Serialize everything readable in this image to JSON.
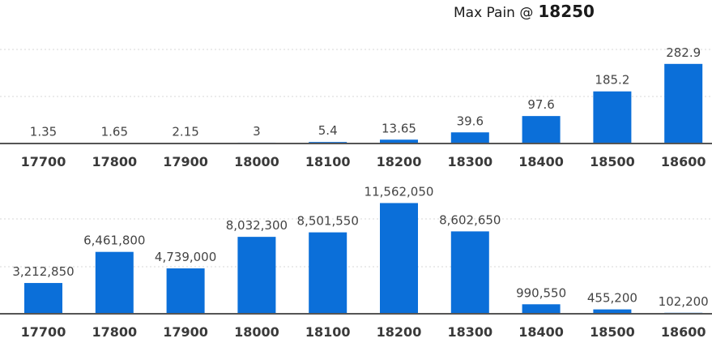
{
  "header": {
    "label": "Max Pain @",
    "value": "18250"
  },
  "chart_data": [
    {
      "type": "bar",
      "title": "",
      "categories": [
        "17700",
        "17800",
        "17900",
        "18000",
        "18100",
        "18200",
        "18300",
        "18400",
        "18500",
        "18600"
      ],
      "values": [
        1.35,
        1.65,
        2.15,
        3,
        5.4,
        13.65,
        39.6,
        97.6,
        185.2,
        282.9
      ],
      "value_labels": [
        "1.35",
        "1.65",
        "2.15",
        "3",
        "5.4",
        "13.65",
        "39.6",
        "97.6",
        "185.2",
        "282.9"
      ],
      "ylim": [
        0,
        340
      ],
      "grid": true,
      "color": "#0b6fd9"
    },
    {
      "type": "bar",
      "title": "",
      "categories": [
        "17700",
        "17800",
        "17900",
        "18000",
        "18100",
        "18200",
        "18300",
        "18400",
        "18500",
        "18600"
      ],
      "values": [
        3212850,
        6461800,
        4739000,
        8032300,
        8501550,
        11562050,
        8602650,
        990550,
        455200,
        102200
      ],
      "value_labels": [
        "3,212,850",
        "6,461,800",
        "4,739,000",
        "8,032,300",
        "8,501,550",
        "11,562,050",
        "8,602,650",
        "990,550",
        "455,200",
        "102,200"
      ],
      "ylim": [
        0,
        11600000
      ],
      "grid": true,
      "color": "#0b6fd9"
    }
  ]
}
